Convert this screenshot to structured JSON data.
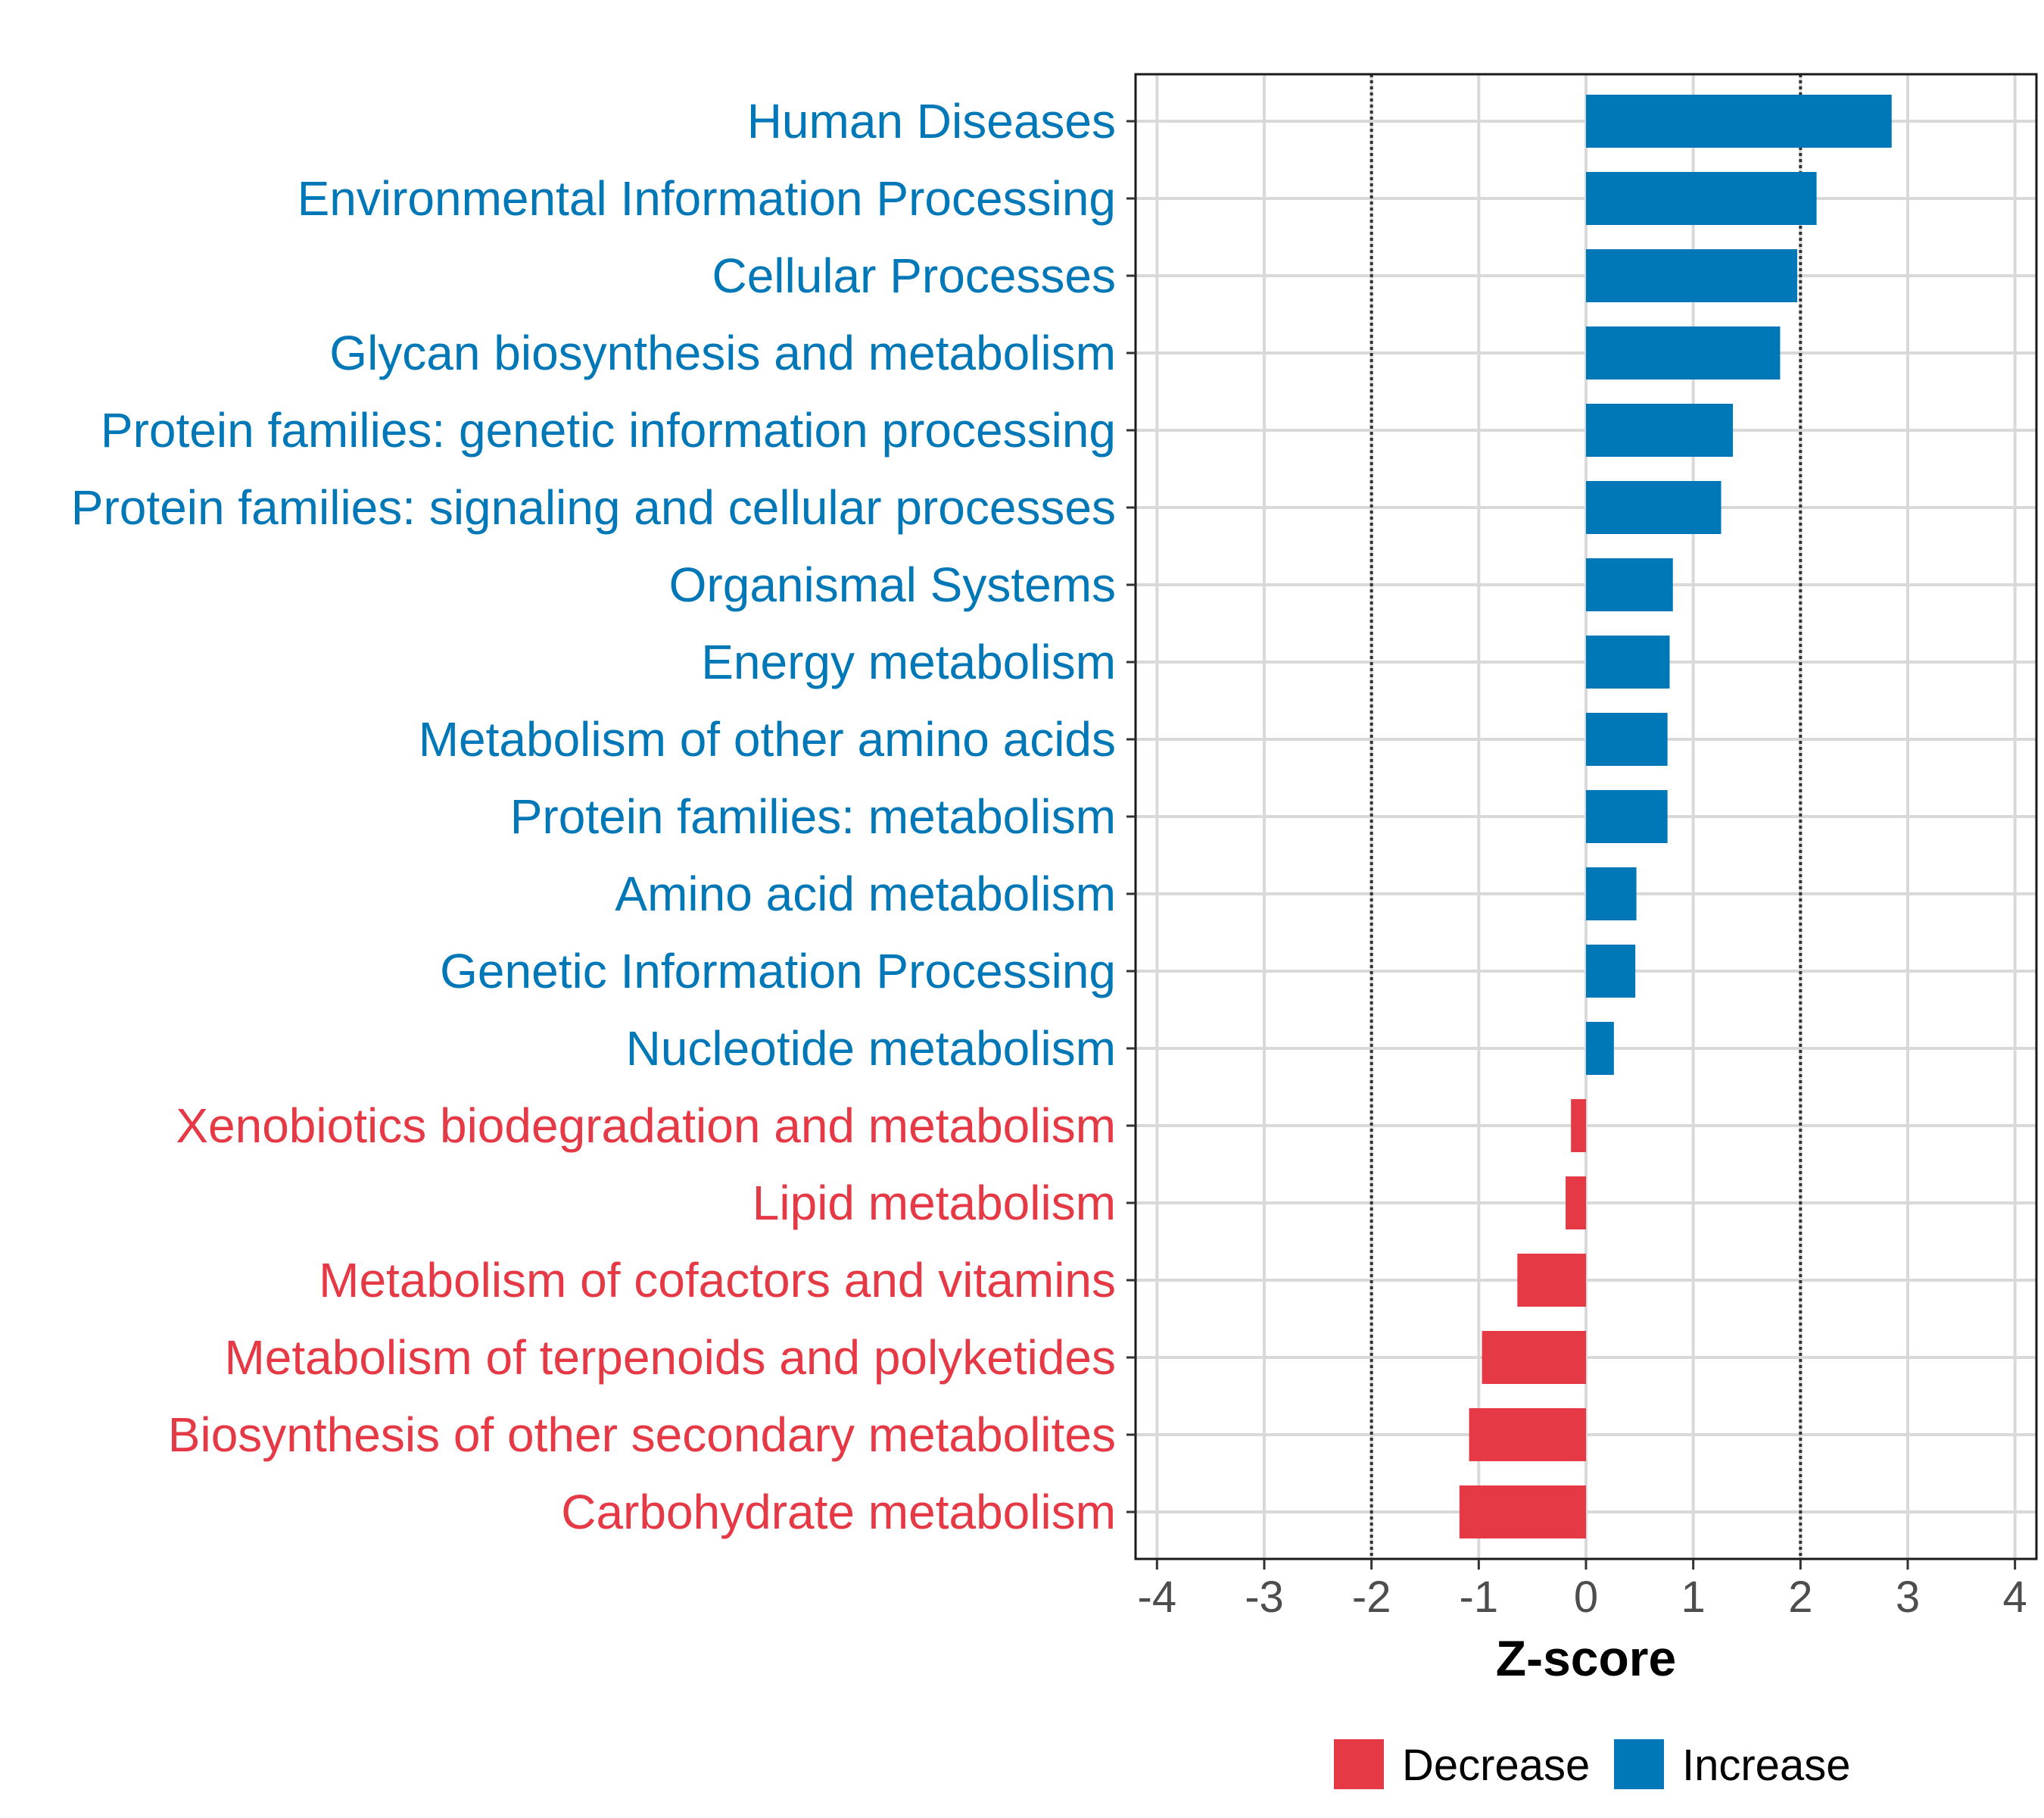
{
  "chart_data": {
    "type": "bar",
    "orientation": "horizontal",
    "title": "",
    "xlabel": "Z-score",
    "ylabel": "",
    "xlim": [
      -4.2,
      4.2
    ],
    "xticks": [
      -4,
      -3,
      -2,
      -1,
      0,
      1,
      2,
      3,
      4
    ],
    "xtick_labels": [
      "-4",
      "-3",
      "-2",
      "-1",
      "0",
      "1",
      "2",
      "3",
      "4"
    ],
    "reference_lines": [
      -2,
      2
    ],
    "grid": true,
    "legend_position": "bottom",
    "categories": [
      "Human Diseases",
      "Environmental Information Processing",
      "Cellular Processes",
      "Glycan biosynthesis and metabolism",
      "Protein families: genetic information processing",
      "Protein families: signaling and cellular processes",
      "Organismal Systems",
      "Energy metabolism",
      "Metabolism of other amino acids",
      "Protein families: metabolism",
      "Amino acid metabolism",
      "Genetic Information Processing",
      "Nucleotide metabolism",
      "Xenobiotics biodegradation and metabolism",
      "Lipid metabolism",
      "Metabolism of cofactors and vitamins",
      "Metabolism of terpenoids and polyketides",
      "Biosynthesis of other secondary metabolites",
      "Carbohydrate metabolism"
    ],
    "values": [
      2.85,
      2.15,
      1.97,
      1.81,
      1.37,
      1.26,
      0.81,
      0.78,
      0.76,
      0.76,
      0.47,
      0.46,
      0.26,
      -0.14,
      -0.19,
      -0.64,
      -0.97,
      -1.09,
      -1.18
    ],
    "series": [
      {
        "name": "Decrease",
        "color": "#E63946"
      },
      {
        "name": "Increase",
        "color": "#0077B6"
      }
    ],
    "legend": [
      "Decrease",
      "Increase"
    ]
  }
}
